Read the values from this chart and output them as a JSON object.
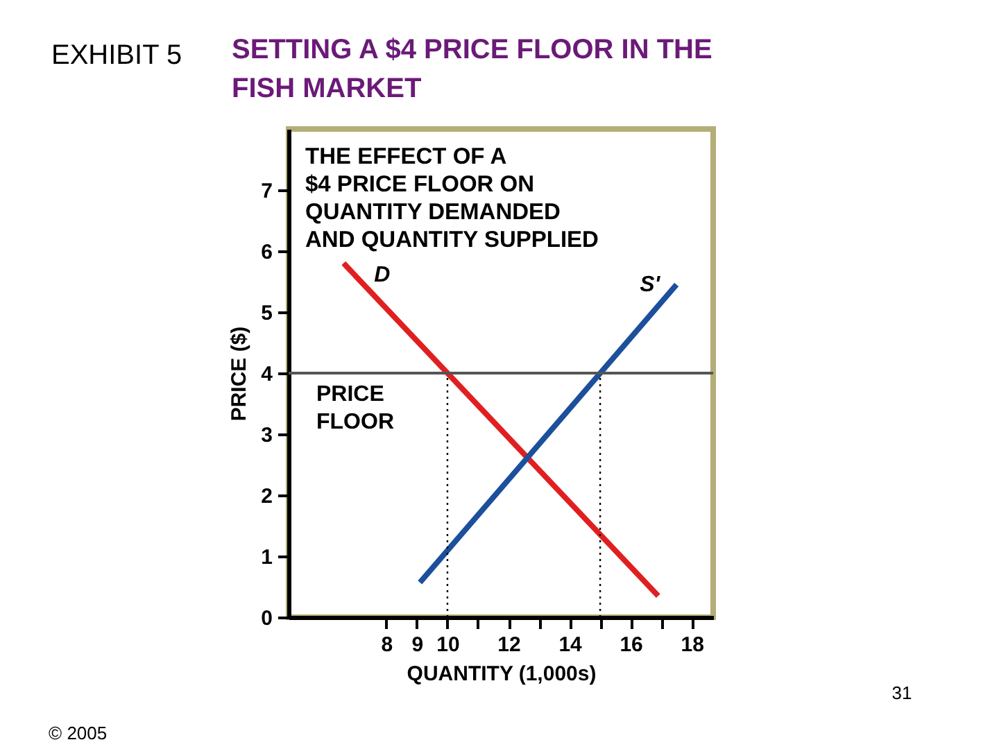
{
  "chart_data": {
    "type": "line",
    "title": "SETTING A $4 PRICE FLOOR IN THE FISH MARKET",
    "xlabel": "QUANTITY (1,000s)",
    "ylabel": "PRICE ($)",
    "annotations": [
      "EXHIBIT 5",
      "THE EFFECT OF A\n$4 PRICE FLOOR ON\nQUANTITY DEMANDED\nAND QUANTITY SUPPLIED",
      "31",
      "© 2005"
    ],
    "xlim": [
      4.8,
      18.7
    ],
    "xticks": [
      8,
      9,
      10,
      {
        "value": 11,
        "label": null
      },
      12,
      {
        "value": 13,
        "label": null
      },
      14,
      {
        "value": 15,
        "label": null
      },
      16,
      {
        "value": 17,
        "label": null
      },
      18
    ],
    "ylim": [
      0,
      8
    ],
    "yticks": [
      0,
      1,
      2,
      3,
      4,
      5,
      6,
      7
    ],
    "series": [
      {
        "name": "D",
        "color": "#e02020",
        "x": [
          6.6,
          16.9
        ],
        "values": [
          5.8,
          0.35
        ]
      },
      {
        "name": "S'",
        "color": "#1c4f9c",
        "x": [
          9.1,
          17.5
        ],
        "values": [
          0.57,
          5.45
        ]
      },
      {
        "type": "line",
        "color": "#000000",
        "line_style": "dotted",
        "x": [
          10,
          10
        ],
        "values": [
          0,
          4
        ]
      },
      {
        "type": "line",
        "color": "#000000",
        "line_style": "dotted",
        "x": [
          15,
          15
        ],
        "values": [
          0,
          4
        ]
      }
    ],
    "ref_lines": [
      {
        "axis": "y",
        "value": 4,
        "label": "PRICE FLOOR",
        "color": "#555555"
      }
    ],
    "grid": false,
    "legend": false,
    "line_style": "solid"
  }
}
